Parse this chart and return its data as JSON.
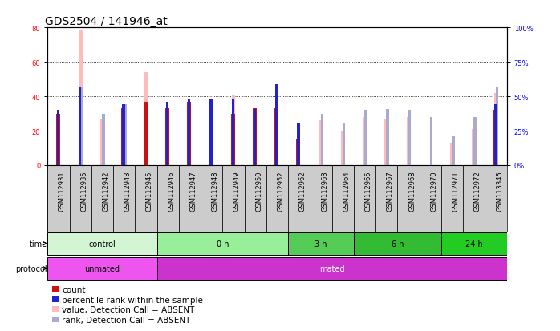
{
  "title": "GDS2504 / 141946_at",
  "samples": [
    "GSM112931",
    "GSM112935",
    "GSM112942",
    "GSM112943",
    "GSM112945",
    "GSM112946",
    "GSM112947",
    "GSM112948",
    "GSM112949",
    "GSM112950",
    "GSM112952",
    "GSM112962",
    "GSM112963",
    "GSM112964",
    "GSM112965",
    "GSM112967",
    "GSM112968",
    "GSM112970",
    "GSM112971",
    "GSM112972",
    "GSM113345"
  ],
  "count_values": [
    30,
    0,
    0,
    33,
    37,
    33,
    37,
    37,
    30,
    33,
    33,
    15,
    0,
    0,
    0,
    0,
    0,
    0,
    0,
    0,
    32
  ],
  "percentile_pct": [
    40,
    57,
    0,
    44,
    0,
    46,
    48,
    48,
    48,
    41,
    59,
    31,
    0,
    0,
    0,
    0,
    0,
    0,
    0,
    0,
    44
  ],
  "absent_value_bars": [
    0,
    78,
    27,
    0,
    54,
    0,
    0,
    0,
    41,
    0,
    0,
    0,
    26,
    20,
    28,
    27,
    28,
    0,
    13,
    21,
    42
  ],
  "absent_rank_pct": [
    0,
    57,
    37,
    44,
    44,
    0,
    0,
    0,
    0,
    0,
    0,
    0,
    37,
    31,
    40,
    41,
    40,
    35,
    21,
    35,
    57
  ],
  "time_groups": [
    {
      "label": "control",
      "start": 0,
      "end": 5,
      "color": "#d4f5d4"
    },
    {
      "label": "0 h",
      "start": 5,
      "end": 11,
      "color": "#99ee99"
    },
    {
      "label": "3 h",
      "start": 11,
      "end": 14,
      "color": "#55cc55"
    },
    {
      "label": "6 h",
      "start": 14,
      "end": 18,
      "color": "#33bb33"
    },
    {
      "label": "24 h",
      "start": 18,
      "end": 21,
      "color": "#22cc22"
    }
  ],
  "protocol_groups": [
    {
      "label": "unmated",
      "start": 0,
      "end": 5,
      "color": "#ee55ee"
    },
    {
      "label": "mated",
      "start": 5,
      "end": 21,
      "color": "#cc33cc"
    }
  ],
  "ylim_left": [
    0,
    80
  ],
  "ylim_right": [
    0,
    100
  ],
  "left_ticks": [
    0,
    20,
    40,
    60,
    80
  ],
  "right_ticks": [
    0,
    25,
    50,
    75,
    100
  ],
  "count_color": "#cc1111",
  "percentile_color": "#2222cc",
  "absent_value_color": "#ffbbbb",
  "absent_rank_color": "#aaaacc",
  "bg_color": "#ffffff",
  "grid_color": "#000000",
  "title_fontsize": 10,
  "tick_fontsize": 6,
  "anno_fontsize": 7,
  "legend_fontsize": 7.5
}
